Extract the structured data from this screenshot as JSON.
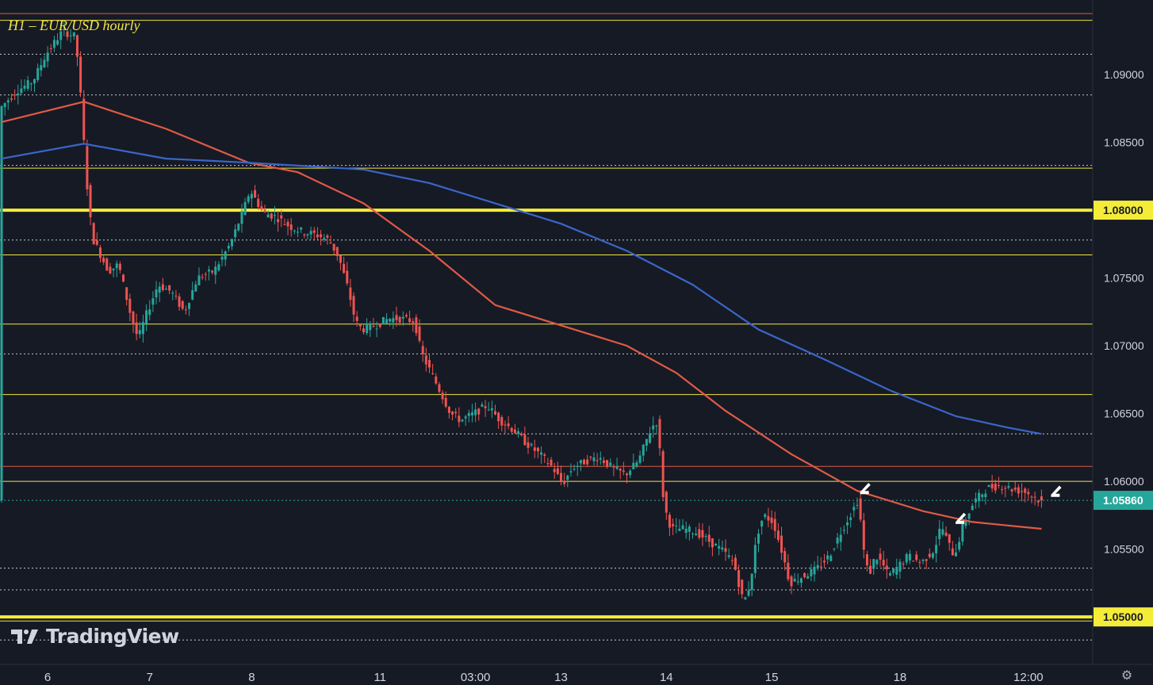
{
  "chart_data": {
    "type": "candlestick",
    "title": "H1 – EUR/USD hourly",
    "ylim": [
      1.0465,
      1.0955
    ],
    "y_ticks": [
      1.09,
      1.085,
      1.08,
      1.075,
      1.07,
      1.065,
      1.06,
      1.055,
      1.05
    ],
    "y_tick_labels": [
      "1.09000",
      "1.08500",
      "1.08000",
      "1.07500",
      "1.07000",
      "1.06500",
      "1.06000",
      "1.05500",
      "1.05000"
    ],
    "x_ticks": [
      {
        "label": "6",
        "bar": 14
      },
      {
        "label": "7",
        "bar": 45
      },
      {
        "label": "8",
        "bar": 76
      },
      {
        "label": "11",
        "bar": 115
      },
      {
        "label": "03:00",
        "bar": 144
      },
      {
        "label": "13",
        "bar": 170
      },
      {
        "label": "14",
        "bar": 202
      },
      {
        "label": "15",
        "bar": 234
      },
      {
        "label": "18",
        "bar": 273
      },
      {
        "label": "12:00",
        "bar": 312
      }
    ],
    "bars_total": 330,
    "price_path": [
      [
        0,
        1.0875
      ],
      [
        5,
        1.0888
      ],
      [
        10,
        1.0895
      ],
      [
        14,
        1.0915
      ],
      [
        19,
        1.0932
      ],
      [
        23,
        1.0928
      ],
      [
        25,
        1.087
      ],
      [
        26,
        1.083
      ],
      [
        28,
        1.078
      ],
      [
        30,
        1.077
      ],
      [
        33,
        1.0755
      ],
      [
        36,
        1.076
      ],
      [
        40,
        1.072
      ],
      [
        42,
        1.0705
      ],
      [
        44,
        1.072
      ],
      [
        48,
        1.0745
      ],
      [
        52,
        1.074
      ],
      [
        56,
        1.0725
      ],
      [
        60,
        1.075
      ],
      [
        65,
        1.0755
      ],
      [
        70,
        1.0775
      ],
      [
        74,
        1.08
      ],
      [
        76,
        1.0815
      ],
      [
        80,
        1.0798
      ],
      [
        84,
        1.0795
      ],
      [
        88,
        1.0788
      ],
      [
        92,
        1.0784
      ],
      [
        96,
        1.0782
      ],
      [
        100,
        1.0778
      ],
      [
        103,
        1.0765
      ],
      [
        106,
        1.074
      ],
      [
        108,
        1.0718
      ],
      [
        110,
        1.0712
      ],
      [
        114,
        1.0715
      ],
      [
        118,
        1.072
      ],
      [
        122,
        1.072
      ],
      [
        126,
        1.0718
      ],
      [
        128,
        1.0695
      ],
      [
        131,
        1.068
      ],
      [
        134,
        1.0665
      ],
      [
        137,
        1.065
      ],
      [
        140,
        1.0645
      ],
      [
        144,
        1.065
      ],
      [
        148,
        1.0656
      ],
      [
        152,
        1.0645
      ],
      [
        156,
        1.0638
      ],
      [
        160,
        1.0628
      ],
      [
        164,
        1.062
      ],
      [
        168,
        1.061
      ],
      [
        171,
        1.0598
      ],
      [
        174,
        1.061
      ],
      [
        178,
        1.0615
      ],
      [
        182,
        1.0618
      ],
      [
        186,
        1.061
      ],
      [
        190,
        1.0605
      ],
      [
        194,
        1.0615
      ],
      [
        198,
        1.064
      ],
      [
        200,
        1.0645
      ],
      [
        201,
        1.06
      ],
      [
        202,
        1.058
      ],
      [
        204,
        1.0565
      ],
      [
        208,
        1.0565
      ],
      [
        212,
        1.0562
      ],
      [
        216,
        1.0555
      ],
      [
        220,
        1.0548
      ],
      [
        223,
        1.054
      ],
      [
        225,
        1.052
      ],
      [
        226,
        1.051
      ],
      [
        228,
        1.0525
      ],
      [
        230,
        1.056
      ],
      [
        232,
        1.0575
      ],
      [
        235,
        1.057
      ],
      [
        238,
        1.0545
      ],
      [
        240,
        1.0525
      ],
      [
        244,
        1.053
      ],
      [
        248,
        1.0535
      ],
      [
        252,
        1.0545
      ],
      [
        256,
        1.0565
      ],
      [
        259,
        1.0578
      ],
      [
        261,
        1.0588
      ],
      [
        262,
        1.0555
      ],
      [
        264,
        1.053
      ],
      [
        266,
        1.0545
      ],
      [
        268,
        1.054
      ],
      [
        270,
        1.053
      ],
      [
        272,
        1.0535
      ],
      [
        276,
        1.0545
      ],
      [
        280,
        1.054
      ],
      [
        284,
        1.055
      ],
      [
        286,
        1.0568
      ],
      [
        288,
        1.0555
      ],
      [
        290,
        1.0545
      ],
      [
        293,
        1.057
      ],
      [
        296,
        1.0585
      ],
      [
        300,
        1.0595
      ],
      [
        304,
        1.0597
      ],
      [
        308,
        1.0594
      ],
      [
        312,
        1.0592
      ],
      [
        315,
        1.0587
      ],
      [
        316,
        1.0586
      ]
    ],
    "series": [
      {
        "name": "",
        "color": "#e05a45",
        "points": [
          [
            0,
            1.0865
          ],
          [
            25,
            1.088
          ],
          [
            50,
            1.086
          ],
          [
            75,
            1.0835
          ],
          [
            90,
            1.0828
          ],
          [
            110,
            1.0805
          ],
          [
            130,
            1.077
          ],
          [
            150,
            1.073
          ],
          [
            170,
            1.0715
          ],
          [
            190,
            1.07
          ],
          [
            205,
            1.068
          ],
          [
            220,
            1.0652
          ],
          [
            240,
            1.062
          ],
          [
            260,
            1.0593
          ],
          [
            280,
            1.0578
          ],
          [
            295,
            1.057
          ],
          [
            316,
            1.0565
          ]
        ]
      },
      {
        "name": "",
        "color": "#3a66c9",
        "points": [
          [
            0,
            1.0838
          ],
          [
            25,
            1.0849
          ],
          [
            50,
            1.0838
          ],
          [
            75,
            1.0835
          ],
          [
            110,
            1.083
          ],
          [
            130,
            1.082
          ],
          [
            150,
            1.0805
          ],
          [
            170,
            1.079
          ],
          [
            190,
            1.077
          ],
          [
            210,
            1.0745
          ],
          [
            230,
            1.0712
          ],
          [
            250,
            1.069
          ],
          [
            270,
            1.0667
          ],
          [
            290,
            1.0648
          ],
          [
            305,
            1.064
          ],
          [
            316,
            1.0635
          ]
        ]
      }
    ],
    "horizontal_lines": [
      {
        "y": 1.094,
        "style": "solid",
        "color": "#f0e442",
        "width": 1
      },
      {
        "y": 1.0945,
        "style": "solid",
        "color": "#e05a45",
        "width": 1
      },
      {
        "y": 1.0915,
        "style": "dotted",
        "color": "#c8c8c8",
        "width": 1
      },
      {
        "y": 1.0885,
        "style": "dotted",
        "color": "#c8c8c8",
        "width": 1
      },
      {
        "y": 1.0833,
        "style": "dotted",
        "color": "#c8c8c8",
        "width": 1
      },
      {
        "y": 1.0831,
        "style": "solid",
        "color": "#f0e442",
        "width": 1
      },
      {
        "y": 1.08,
        "style": "solid",
        "color": "#f5ec3a",
        "width": 4
      },
      {
        "y": 1.0778,
        "style": "dotted",
        "color": "#c8c8c8",
        "width": 1
      },
      {
        "y": 1.0767,
        "style": "solid",
        "color": "#f0e442",
        "width": 1
      },
      {
        "y": 1.0716,
        "style": "solid",
        "color": "#f0e442",
        "width": 1
      },
      {
        "y": 1.0694,
        "style": "dotted",
        "color": "#c8c8c8",
        "width": 1
      },
      {
        "y": 1.0664,
        "style": "solid",
        "color": "#f0e442",
        "width": 1
      },
      {
        "y": 1.0635,
        "style": "dotted",
        "color": "#c8c8c8",
        "width": 1
      },
      {
        "y": 1.0611,
        "style": "solid",
        "color": "#e05a45",
        "width": 1
      },
      {
        "y": 1.06,
        "style": "solid",
        "color": "#f0e442",
        "width": 1
      },
      {
        "y": 1.0586,
        "style": "dotted",
        "color": "#26a69a",
        "width": 1
      },
      {
        "y": 1.0536,
        "style": "dotted",
        "color": "#c8c8c8",
        "width": 1
      },
      {
        "y": 1.052,
        "style": "dotted",
        "color": "#c8c8c8",
        "width": 1
      },
      {
        "y": 1.05,
        "style": "solid",
        "color": "#f5ec3a",
        "width": 4
      },
      {
        "y": 1.0497,
        "style": "solid",
        "color": "#f0e442",
        "width": 1
      },
      {
        "y": 1.0483,
        "style": "dotted",
        "color": "#c8c8c8",
        "width": 1
      }
    ],
    "price_labels": [
      {
        "value": 1.08,
        "text": "1.08000",
        "bg": "#f5ec3a",
        "fg": "#161a25"
      },
      {
        "value": 1.05,
        "text": "1.05000",
        "bg": "#f5ec3a",
        "fg": "#161a25"
      },
      {
        "value": 1.0586,
        "text": "1.05860",
        "bg": "#26a69a",
        "fg": "#ffffff"
      }
    ],
    "arrows": [
      {
        "bar": 261,
        "y": 1.0592
      },
      {
        "bar": 290,
        "y": 1.057
      },
      {
        "bar": 319,
        "y": 1.059
      }
    ],
    "colors": {
      "up": "#26a69a",
      "down": "#ef5350",
      "background": "#161a25",
      "axis_text": "#d1d4dc"
    }
  },
  "branding": {
    "logo_text": "TradingView"
  }
}
